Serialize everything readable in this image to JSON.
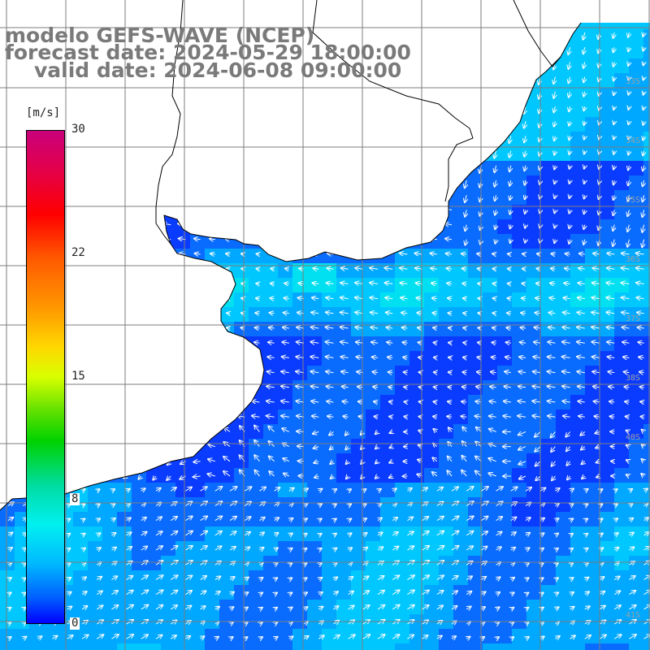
{
  "title": {
    "line1": "modelo GEFS-WAVE (NCEP)",
    "line2": "forecast date: 2024-05-29 18:00:00",
    "line3": "valid date: 2024-06-08 09:00:00"
  },
  "colorbar": {
    "unit": "[m/s]",
    "ticks": [
      "30",
      "22",
      "15",
      "8",
      "0"
    ],
    "min": 0,
    "max": 30
  },
  "grid": {
    "lat_labels": [
      "33S",
      "34S",
      "35S",
      "36S",
      "37S",
      "38S",
      "40S",
      "41S"
    ]
  },
  "colors": {
    "ocean_low": "#0a3cff",
    "ocean_mid": "#00a8ff",
    "ocean_high": "#00e0f0",
    "land": "#ffffff",
    "arrow": "#ffffff",
    "grid": "#7d7d7d",
    "coast": "#000000"
  }
}
